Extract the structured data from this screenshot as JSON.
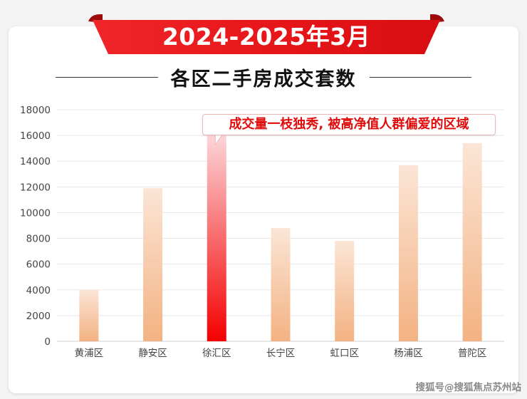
{
  "banner": {
    "title": "2024-2025年3月"
  },
  "subtitle": "各区二手房成交套数",
  "callout": "成交量一枝独秀, 被高净值人群偏爱的区域",
  "watermark": "搜狐号@搜狐焦点苏州站",
  "colors": {
    "banner": "#e7161a",
    "bar_gradient_top": "#fbe5d6",
    "bar_gradient_bottom": "#f3b282",
    "highlight_top": "#fcd5d8",
    "highlight_bottom": "#f40000",
    "callout_text": "#e10b0b"
  },
  "chart_data": {
    "type": "bar",
    "categories": [
      "黄浦区",
      "静安区",
      "徐汇区",
      "长宁区",
      "虹口区",
      "杨浦区",
      "普陀区"
    ],
    "values": [
      4000,
      11900,
      16000,
      8800,
      7800,
      13700,
      15400
    ],
    "highlight_index": 2,
    "ylim": [
      0,
      18000
    ],
    "yticks": [
      0,
      2000,
      4000,
      6000,
      8000,
      10000,
      12000,
      14000,
      16000,
      18000
    ],
    "grid": true,
    "xlabel": "",
    "ylabel": ""
  }
}
